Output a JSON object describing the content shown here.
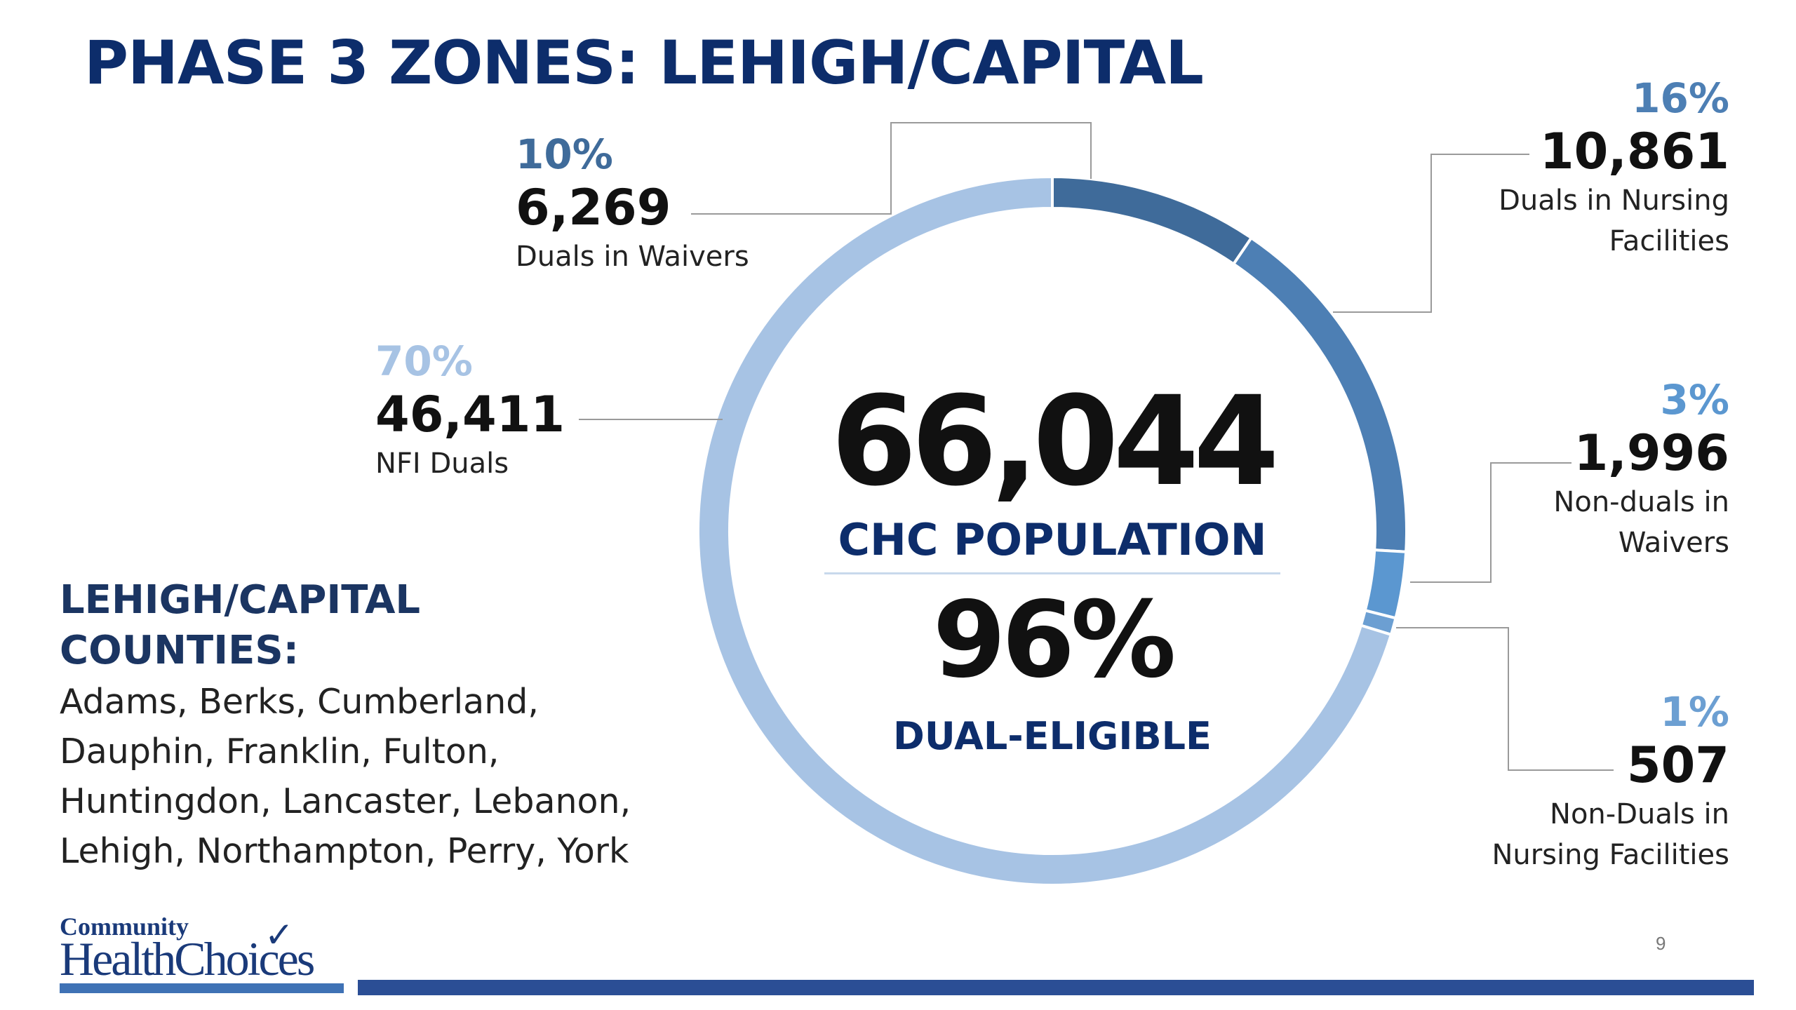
{
  "title": "PHASE 3 ZONES: LEHIGH/CAPITAL",
  "center": {
    "total_value": "66,044",
    "total_label": "CHC POPULATION",
    "dual_value": "96%",
    "dual_label": "DUAL-ELIGIBLE"
  },
  "counties": {
    "heading": "LEHIGH/CAPITAL COUNTIES:",
    "list": "Adams, Berks, Cumberland, Dauphin, Franklin, Fulton, Huntingdon, Lancaster, Lebanon, Lehigh, Northampton, Perry, York"
  },
  "logo": {
    "top_text": "Community",
    "main_text": "HealthChoices"
  },
  "page_number": "9",
  "colors": {
    "title": "#0d2d6b",
    "waivers": "#3f6b9a",
    "nursing": "#4d7fb4",
    "nonduals_waivers": "#5b97d0",
    "nonduals_nursing": "#6c9fd2",
    "nfi": "#a7c3e4"
  },
  "chart_data": {
    "type": "pie",
    "variant": "donut",
    "total": 66044,
    "slices": [
      {
        "label": "Duals in Waivers",
        "value": 6269,
        "percent": "10%",
        "color": "#3f6b9a"
      },
      {
        "label": "Duals in Nursing Facilities",
        "value": 10861,
        "percent": "16%",
        "color": "#4d7fb4"
      },
      {
        "label": "Non-duals in Waivers",
        "value": 1996,
        "percent": "3%",
        "color": "#5b97d0"
      },
      {
        "label": "Non-Duals in Nursing Facilities",
        "value": 507,
        "percent": "1%",
        "color": "#6c9fd2"
      },
      {
        "label": "NFI Duals",
        "value": 46411,
        "percent": "70%",
        "color": "#a7c3e4"
      }
    ],
    "value_labels": [
      "6,269",
      "10,861",
      "1,996",
      "507",
      "46,411"
    ],
    "label_lines": [
      "Duals in Waivers",
      "Duals in Nursing\nFacilities",
      "Non-duals in\nWaivers",
      "Non-Duals in\nNursing Facilities",
      "NFI Duals"
    ]
  }
}
